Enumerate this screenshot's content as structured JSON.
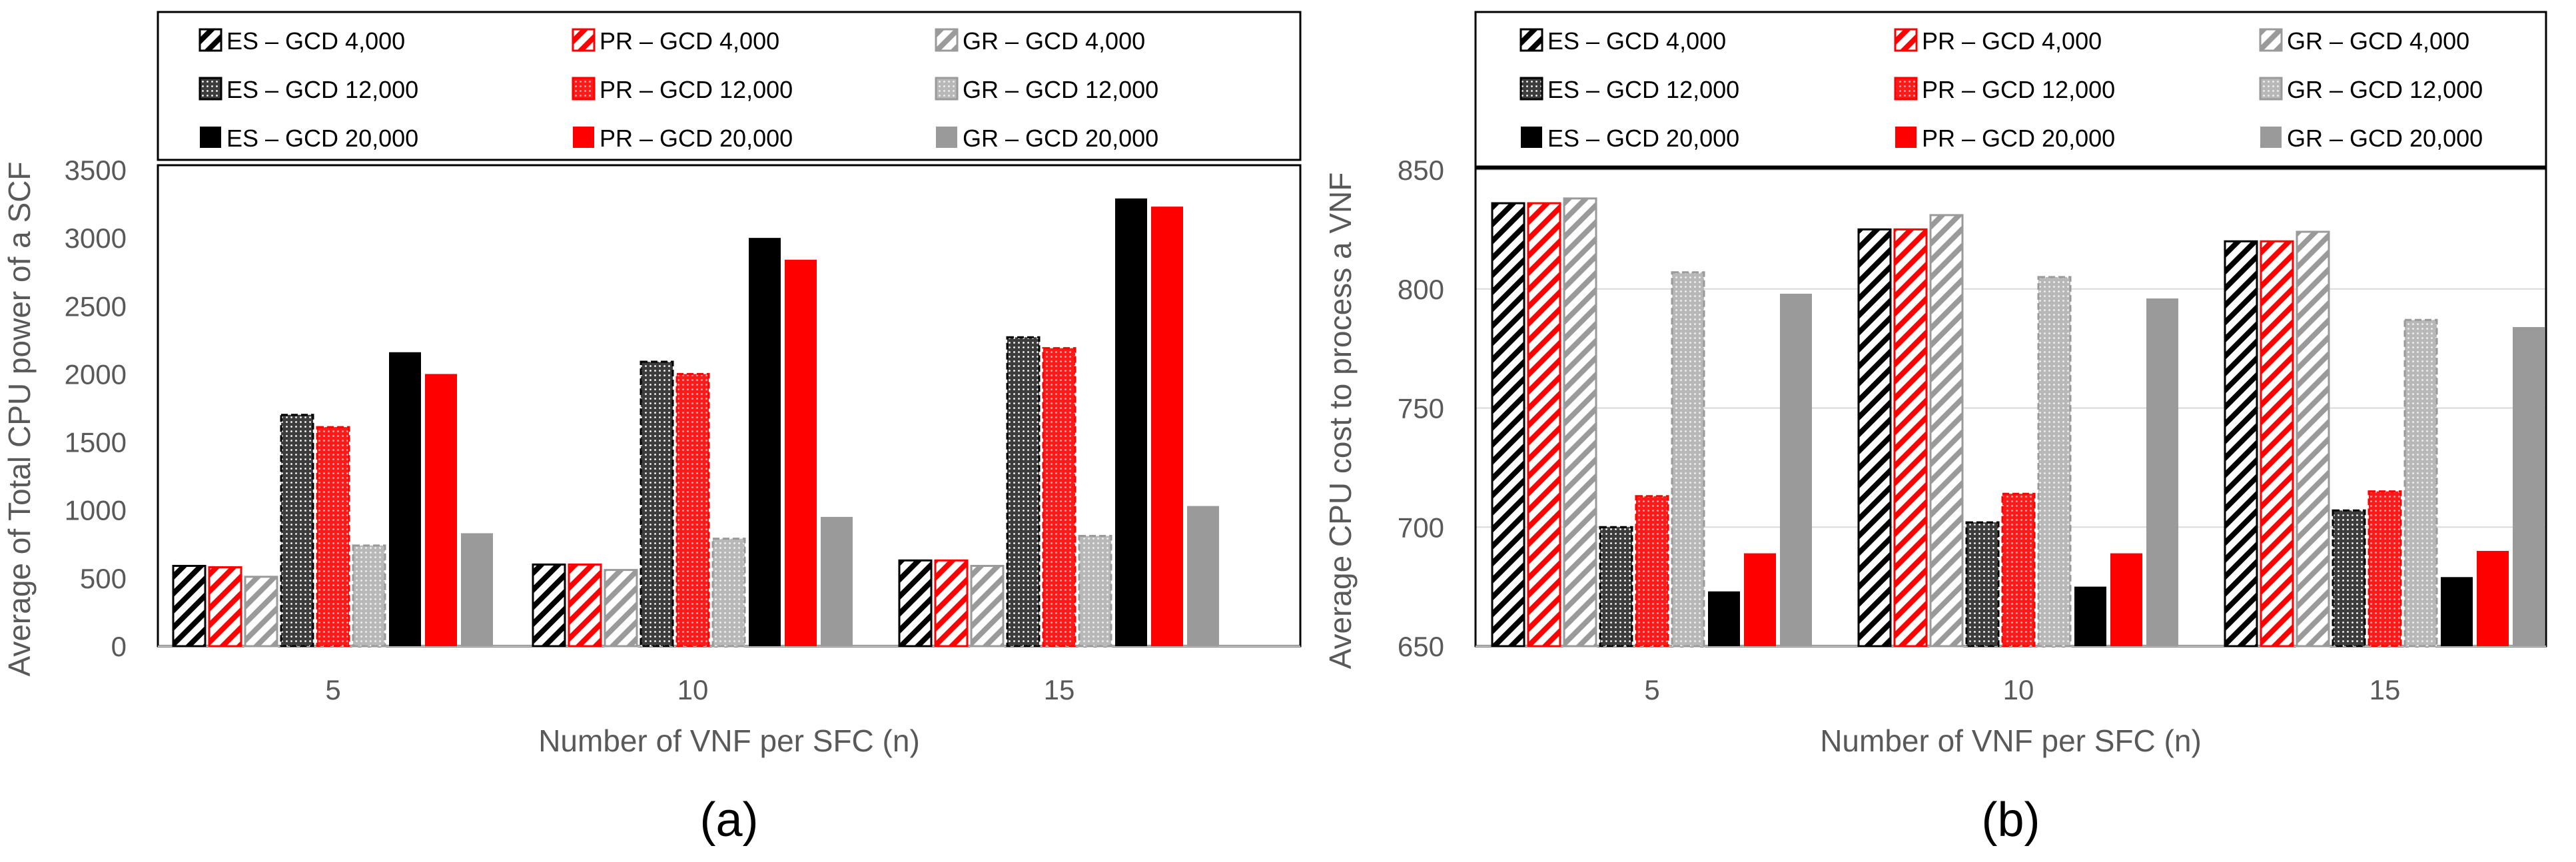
{
  "colors": {
    "black": "#000000",
    "red": "#ff0000",
    "gray": "#9a9a9a",
    "axis_text": "#595959",
    "grid": "#d9d9d9",
    "border": "#000000"
  },
  "chart_data": [
    {
      "type": "bar",
      "panel_label": "(a)",
      "title": "",
      "xlabel": "Number of VNF per SFC (n)",
      "ylabel": "Average of Total CPU power of a SCF",
      "categories": [
        "5",
        "10",
        "15"
      ],
      "ylim": [
        0,
        3500
      ],
      "yticks": [
        0,
        500,
        1000,
        1500,
        2000,
        2500,
        3000,
        3500
      ],
      "grid": false,
      "legend_position": "top",
      "series": [
        {
          "name": "ES – GCD 4,000",
          "color": "black",
          "pattern": "hatch",
          "values": [
            590,
            600,
            630
          ]
        },
        {
          "name": "PR – GCD 4,000",
          "color": "red",
          "pattern": "hatch",
          "values": [
            580,
            600,
            630
          ]
        },
        {
          "name": "GR – GCD 4,000",
          "color": "gray",
          "pattern": "hatch",
          "values": [
            510,
            560,
            590
          ]
        },
        {
          "name": "ES – GCD 12,000",
          "color": "black",
          "pattern": "dots",
          "values": [
            1700,
            2090,
            2270
          ]
        },
        {
          "name": "PR – GCD 12,000",
          "color": "red",
          "pattern": "dots",
          "values": [
            1610,
            2000,
            2190
          ]
        },
        {
          "name": "GR – GCD 12,000",
          "color": "gray",
          "pattern": "dots",
          "values": [
            740,
            790,
            810
          ]
        },
        {
          "name": "ES – GCD 20,000",
          "color": "black",
          "pattern": "solid",
          "values": [
            2160,
            3000,
            3290
          ]
        },
        {
          "name": "PR – GCD 20,000",
          "color": "red",
          "pattern": "solid",
          "values": [
            2000,
            2840,
            3230
          ]
        },
        {
          "name": "GR – GCD 20,000",
          "color": "gray",
          "pattern": "solid",
          "values": [
            830,
            950,
            1030
          ]
        }
      ]
    },
    {
      "type": "bar",
      "panel_label": "(b)",
      "title": "",
      "xlabel": "Number of VNF per SFC (n)",
      "ylabel": "Average CPU cost to process a VNF",
      "categories": [
        "5",
        "10",
        "15"
      ],
      "ylim": [
        650,
        850
      ],
      "yticks": [
        650,
        700,
        750,
        800,
        850
      ],
      "grid": true,
      "legend_position": "top",
      "series": [
        {
          "name": "ES – GCD 4,000",
          "color": "black",
          "pattern": "hatch",
          "values": [
            836,
            825,
            820
          ]
        },
        {
          "name": "PR – GCD 4,000",
          "color": "red",
          "pattern": "hatch",
          "values": [
            836,
            825,
            820
          ]
        },
        {
          "name": "GR – GCD 4,000",
          "color": "gray",
          "pattern": "hatch",
          "values": [
            838,
            831,
            824
          ]
        },
        {
          "name": "ES – GCD 12,000",
          "color": "black",
          "pattern": "dots",
          "values": [
            700,
            702,
            707
          ]
        },
        {
          "name": "PR – GCD 12,000",
          "color": "red",
          "pattern": "dots",
          "values": [
            713,
            714,
            715
          ]
        },
        {
          "name": "GR – GCD 12,000",
          "color": "gray",
          "pattern": "dots",
          "values": [
            807,
            805,
            787
          ]
        },
        {
          "name": "ES – GCD 20,000",
          "color": "black",
          "pattern": "solid",
          "values": [
            673,
            675,
            679
          ]
        },
        {
          "name": "PR – GCD 20,000",
          "color": "red",
          "pattern": "solid",
          "values": [
            689,
            689,
            690
          ]
        },
        {
          "name": "GR – GCD 20,000",
          "color": "gray",
          "pattern": "solid",
          "values": [
            798,
            796,
            784
          ]
        }
      ]
    }
  ]
}
